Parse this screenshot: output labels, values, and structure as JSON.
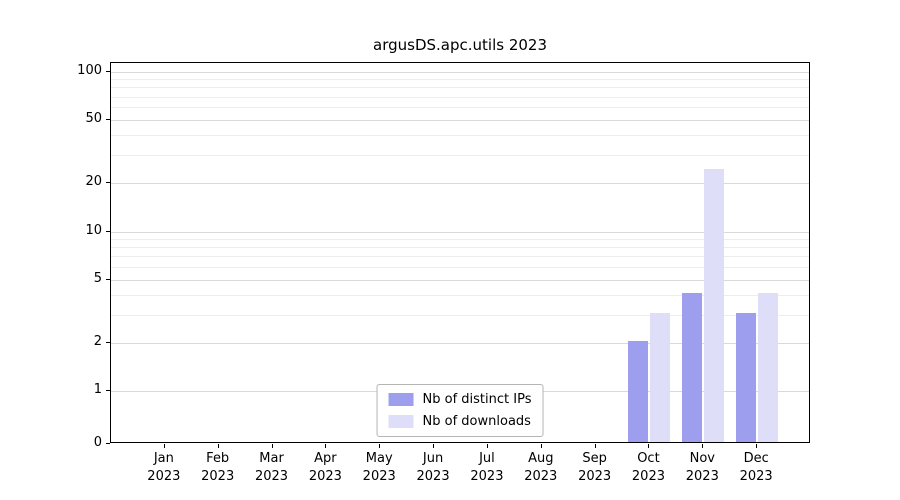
{
  "title": "argusDS.apc.utils 2023",
  "colors": {
    "distinct_ips": "#9e9eee",
    "downloads": "#dedef8",
    "grid_major": "#d9d9d9",
    "grid_minor": "#ededed",
    "axis": "#000000",
    "background": "#ffffff"
  },
  "legend": {
    "items": [
      {
        "label": "Nb of distinct IPs"
      },
      {
        "label": "Nb of downloads"
      }
    ]
  },
  "chart_data": {
    "type": "bar",
    "title": "argusDS.apc.utils 2023",
    "categories": [
      "Jan 2023",
      "Feb 2023",
      "Mar 2023",
      "Apr 2023",
      "May 2023",
      "Jun 2023",
      "Jul 2023",
      "Aug 2023",
      "Sep 2023",
      "Oct 2023",
      "Nov 2023",
      "Dec 2023"
    ],
    "series": [
      {
        "name": "Nb of distinct IPs",
        "color": "#9e9eee",
        "values": [
          0,
          0,
          0,
          0,
          0,
          0,
          0,
          0,
          0,
          2,
          4,
          3
        ]
      },
      {
        "name": "Nb of downloads",
        "color": "#dedef8",
        "values": [
          0,
          0,
          0,
          0,
          0,
          0,
          0,
          0,
          0,
          3,
          24,
          4
        ]
      }
    ],
    "xlabel": "",
    "ylabel": "",
    "yscale": "symlog",
    "yticks": [
      0,
      1,
      2,
      5,
      10,
      20,
      50,
      100
    ],
    "minor_yticks": [
      3,
      4,
      6,
      7,
      8,
      9,
      30,
      40,
      60,
      70,
      80,
      90
    ],
    "ylim": [
      0,
      114
    ],
    "grid": "on",
    "legend_position": "lower center"
  }
}
